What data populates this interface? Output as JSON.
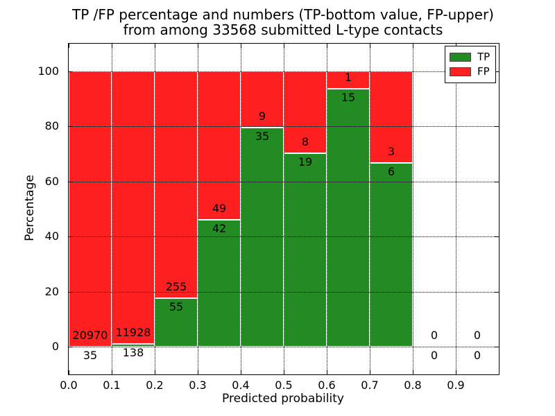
{
  "title": {
    "line1": "TP /FP percentage and numbers (TP-bottom value, FP-upper)",
    "line2": "from among 33568 submitted L-type contacts"
  },
  "chart_data": {
    "type": "bar",
    "stacked": true,
    "normalized": "each bin scaled to 100%",
    "title": "TP /FP percentage and numbers (TP-bottom value, FP-upper) from among 33568 submitted L-type contacts",
    "xlabel": "Predicted probability",
    "ylabel": "Percentage",
    "total_submitted": 33568,
    "bin_edges": [
      0.0,
      0.1,
      0.2,
      0.3,
      0.4,
      0.5,
      0.6,
      0.7,
      0.8,
      0.9,
      1.0
    ],
    "series": [
      {
        "name": "TP",
        "color": "#228b22",
        "counts": [
          35,
          138,
          55,
          42,
          35,
          19,
          15,
          6,
          0,
          0
        ]
      },
      {
        "name": "FP",
        "color": "#fe2020",
        "counts": [
          20970,
          11928,
          255,
          49,
          9,
          8,
          1,
          3,
          0,
          0
        ]
      }
    ],
    "tp_percent_per_bin": [
      0.17,
      1.14,
      17.74,
      46.15,
      79.55,
      70.37,
      93.75,
      66.67,
      null,
      null
    ],
    "xticks": [
      "0.0",
      "0.1",
      "0.2",
      "0.3",
      "0.4",
      "0.5",
      "0.6",
      "0.7",
      "0.8",
      "0.9"
    ],
    "yticks": [
      "0",
      "20",
      "40",
      "60",
      "80",
      "100"
    ],
    "xlim": [
      0.0,
      1.0
    ],
    "ylim": [
      -10,
      110
    ],
    "grid": true,
    "grid_style": "dotted",
    "legend_position": "upper right",
    "bar_edge_color": "#ffffff",
    "background": "#ffffff"
  }
}
